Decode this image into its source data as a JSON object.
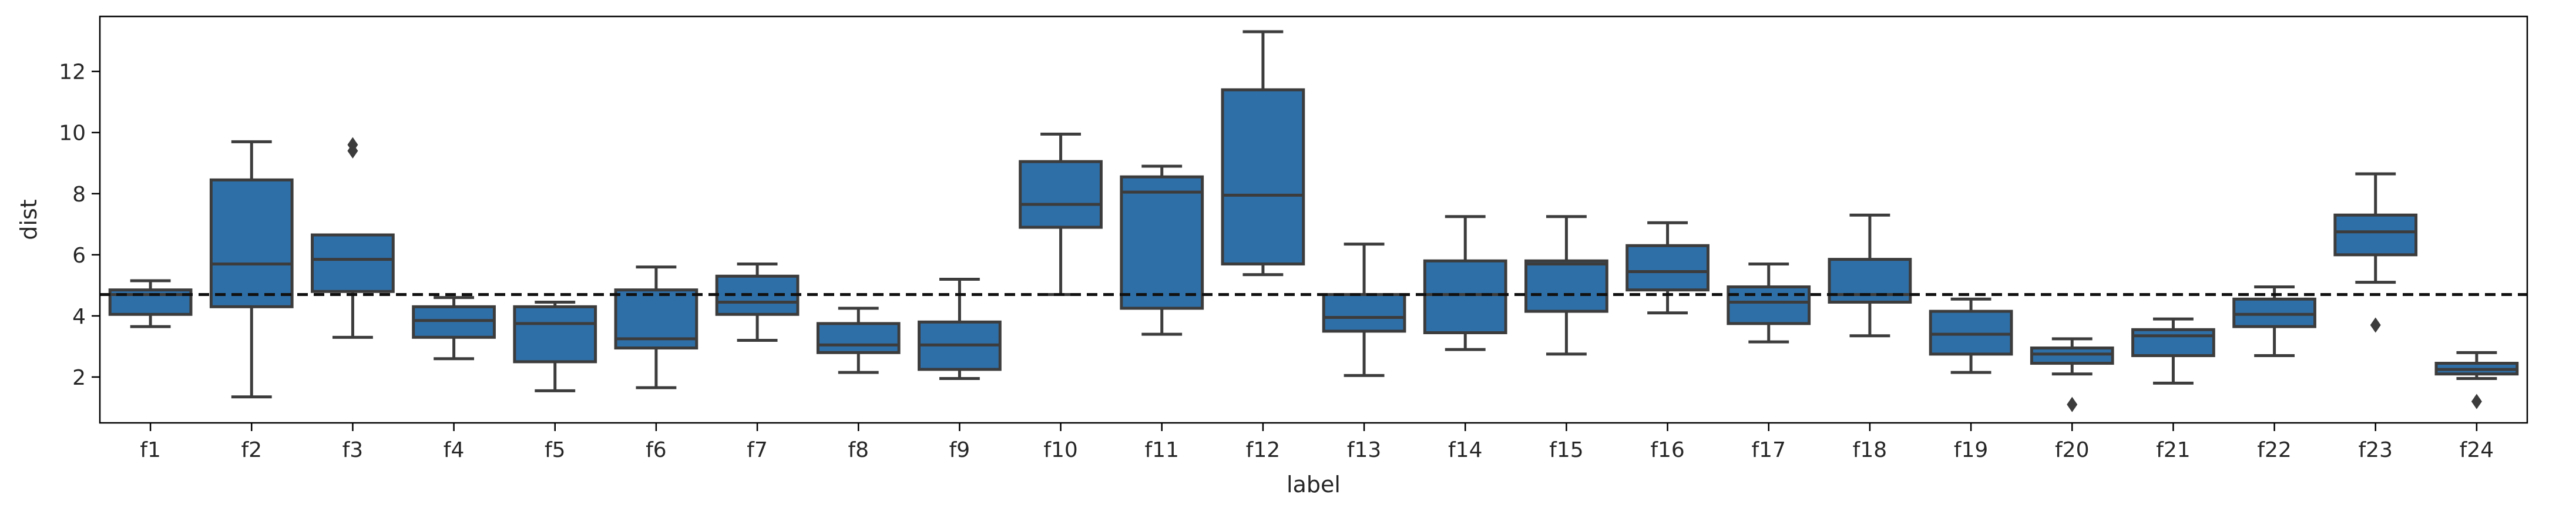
{
  "chart_data": {
    "type": "box",
    "xlabel": "label",
    "ylabel": "dist",
    "ylim": [
      0.5,
      13.8
    ],
    "yticks": [
      2,
      4,
      6,
      8,
      10,
      12
    ],
    "reference_line": 4.7,
    "box_color": "#2f6fa7",
    "line_color": "#3c3c3c",
    "grid": false,
    "categories": [
      "f1",
      "f2",
      "f3",
      "f4",
      "f5",
      "f6",
      "f7",
      "f8",
      "f9",
      "f10",
      "f11",
      "f12",
      "f13",
      "f14",
      "f15",
      "f16",
      "f17",
      "f18",
      "f19",
      "f20",
      "f21",
      "f22",
      "f23",
      "f24"
    ],
    "boxes": [
      {
        "label": "f1",
        "whislo": 3.65,
        "q1": 4.05,
        "med": 4.7,
        "q3": 4.85,
        "whishi": 5.15,
        "fliers": []
      },
      {
        "label": "f2",
        "whislo": 1.35,
        "q1": 4.3,
        "med": 5.7,
        "q3": 8.45,
        "whishi": 9.7,
        "fliers": []
      },
      {
        "label": "f3",
        "whislo": 3.3,
        "q1": 4.8,
        "med": 5.85,
        "q3": 6.65,
        "whishi": 6.65,
        "fliers": [
          9.4,
          9.6
        ]
      },
      {
        "label": "f4",
        "whislo": 2.6,
        "q1": 3.3,
        "med": 3.85,
        "q3": 4.3,
        "whishi": 4.6,
        "fliers": []
      },
      {
        "label": "f5",
        "whislo": 1.55,
        "q1": 2.5,
        "med": 3.75,
        "q3": 4.3,
        "whishi": 4.45,
        "fliers": []
      },
      {
        "label": "f6",
        "whislo": 1.65,
        "q1": 2.95,
        "med": 3.25,
        "q3": 4.85,
        "whishi": 5.6,
        "fliers": []
      },
      {
        "label": "f7",
        "whislo": 3.2,
        "q1": 4.05,
        "med": 4.45,
        "q3": 5.3,
        "whishi": 5.7,
        "fliers": []
      },
      {
        "label": "f8",
        "whislo": 2.15,
        "q1": 2.8,
        "med": 3.05,
        "q3": 3.75,
        "whishi": 4.25,
        "fliers": []
      },
      {
        "label": "f9",
        "whislo": 1.95,
        "q1": 2.25,
        "med": 3.05,
        "q3": 3.8,
        "whishi": 5.2,
        "fliers": []
      },
      {
        "label": "f10",
        "whislo": 4.7,
        "q1": 6.9,
        "med": 7.65,
        "q3": 9.05,
        "whishi": 9.95,
        "fliers": []
      },
      {
        "label": "f11",
        "whislo": 3.4,
        "q1": 4.25,
        "med": 8.05,
        "q3": 8.55,
        "whishi": 8.9,
        "fliers": []
      },
      {
        "label": "f12",
        "whislo": 5.35,
        "q1": 5.7,
        "med": 7.95,
        "q3": 11.4,
        "whishi": 13.3,
        "fliers": []
      },
      {
        "label": "f13",
        "whislo": 2.05,
        "q1": 3.5,
        "med": 3.95,
        "q3": 4.7,
        "whishi": 6.35,
        "fliers": []
      },
      {
        "label": "f14",
        "whislo": 2.9,
        "q1": 3.45,
        "med": 4.7,
        "q3": 5.8,
        "whishi": 7.25,
        "fliers": []
      },
      {
        "label": "f15",
        "whislo": 2.75,
        "q1": 4.15,
        "med": 5.7,
        "q3": 5.8,
        "whishi": 7.25,
        "fliers": []
      },
      {
        "label": "f16",
        "whislo": 4.1,
        "q1": 4.85,
        "med": 5.45,
        "q3": 6.3,
        "whishi": 7.05,
        "fliers": []
      },
      {
        "label": "f17",
        "whislo": 3.15,
        "q1": 3.75,
        "med": 4.45,
        "q3": 4.95,
        "whishi": 5.7,
        "fliers": []
      },
      {
        "label": "f18",
        "whislo": 3.35,
        "q1": 4.45,
        "med": 4.7,
        "q3": 5.85,
        "whishi": 7.3,
        "fliers": []
      },
      {
        "label": "f19",
        "whislo": 2.15,
        "q1": 2.75,
        "med": 3.4,
        "q3": 4.15,
        "whishi": 4.55,
        "fliers": []
      },
      {
        "label": "f20",
        "whislo": 2.1,
        "q1": 2.45,
        "med": 2.75,
        "q3": 2.95,
        "whishi": 3.25,
        "fliers": [
          1.1
        ]
      },
      {
        "label": "f21",
        "whislo": 1.8,
        "q1": 2.7,
        "med": 3.35,
        "q3": 3.55,
        "whishi": 3.9,
        "fliers": []
      },
      {
        "label": "f22",
        "whislo": 2.7,
        "q1": 3.65,
        "med": 4.05,
        "q3": 4.55,
        "whishi": 4.95,
        "fliers": []
      },
      {
        "label": "f23",
        "whislo": 5.1,
        "q1": 6.0,
        "med": 6.75,
        "q3": 7.3,
        "whishi": 8.65,
        "fliers": [
          3.7
        ]
      },
      {
        "label": "f24",
        "whislo": 1.95,
        "q1": 2.1,
        "med": 2.25,
        "q3": 2.45,
        "whishi": 2.8,
        "fliers": [
          1.2
        ]
      }
    ]
  }
}
